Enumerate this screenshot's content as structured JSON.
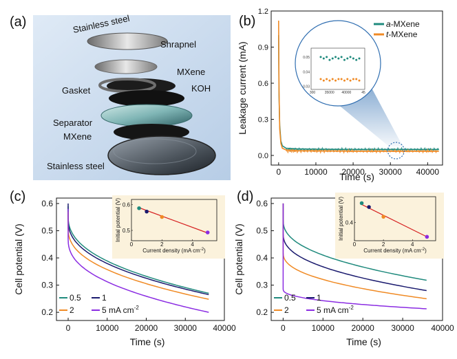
{
  "panel_a": {
    "letter": "(a)",
    "labels": [
      "Stainless steel",
      "Shrapnel",
      "MXene",
      "Gasket",
      "KOH",
      "Separator",
      "MXene",
      "Stainless steel"
    ]
  },
  "colors": {
    "teal": "#1f8a7d",
    "orange": "#f08a24",
    "navy": "#1a1a6e",
    "purple": "#8a2be2",
    "red": "#d62020"
  },
  "chart_data": [
    {
      "panel": "(b)",
      "type": "line",
      "xlabel": "Time (s)",
      "ylabel": "Leakage current (mA)",
      "xlim": [
        -2000,
        44000
      ],
      "ylim": [
        -0.08,
        1.2
      ],
      "xticks": [
        "0",
        "10000",
        "20000",
        "30000",
        "40000"
      ],
      "yticks": [
        "0.0",
        "0.3",
        "0.6",
        "0.9",
        "1.2"
      ],
      "legend": "top-right",
      "series": [
        {
          "name": "a-MXene",
          "name_italic": "a",
          "name_rest": "-MXene",
          "color": "#1f8a7d",
          "x": [
            0,
            100,
            300,
            600,
            1000,
            2000,
            5000,
            10000,
            20000,
            30000,
            40000,
            43000
          ],
          "y": [
            1.0,
            0.5,
            0.25,
            0.12,
            0.08,
            0.06,
            0.055,
            0.052,
            0.05,
            0.05,
            0.05,
            0.05
          ]
        },
        {
          "name": "t-MXene",
          "name_italic": "t",
          "name_rest": "-MXene",
          "color": "#f08a24",
          "x": [
            0,
            100,
            300,
            600,
            1000,
            2000,
            5000,
            10000,
            20000,
            30000,
            40000,
            43000
          ],
          "y": [
            1.12,
            0.55,
            0.22,
            0.1,
            0.06,
            0.045,
            0.04,
            0.038,
            0.035,
            0.035,
            0.035,
            0.035
          ]
        }
      ],
      "inset": {
        "xticks": [
          "300",
          "35000",
          "40000",
          "45"
        ],
        "yticks": [
          "0.05",
          "0.04",
          "0.03"
        ],
        "teal_values": [
          0.05,
          0.049,
          0.05,
          0.048,
          0.049,
          0.05,
          0.049,
          0.05,
          0.048,
          0.049,
          0.05,
          0.049,
          0.048,
          0.049
        ],
        "orange_values": [
          0.035,
          0.034,
          0.035,
          0.034,
          0.035,
          0.034,
          0.035,
          0.035,
          0.034,
          0.035,
          0.034,
          0.035,
          0.035,
          0.034
        ]
      }
    },
    {
      "panel": "(c)",
      "type": "line",
      "xlabel": "Time (s)",
      "ylabel": "Cell potential (V)",
      "xlim": [
        -3000,
        40000
      ],
      "ylim": [
        0.17,
        0.62
      ],
      "xticks": [
        "0",
        "10000",
        "20000",
        "30000",
        "40000"
      ],
      "yticks": [
        "0.2",
        "0.3",
        "0.4",
        "0.5",
        "0.6"
      ],
      "legend_labels": [
        "0.5",
        "1",
        "2",
        "5 mA cm"
      ],
      "legend_unit_sup": "-2",
      "series": [
        {
          "name": "0.5",
          "color": "#1f8a7d",
          "v0": 0.59,
          "vjump": 0.555,
          "vend": 0.27
        },
        {
          "name": "1",
          "color": "#1a1a6e",
          "v0": 0.6,
          "vjump": 0.54,
          "vend": 0.265
        },
        {
          "name": "2",
          "color": "#f08a24",
          "v0": 0.57,
          "vjump": 0.51,
          "vend": 0.248
        },
        {
          "name": "5 mA cm-2",
          "color": "#8a2be2",
          "v0": 0.58,
          "vjump": 0.47,
          "vend": 0.2
        }
      ],
      "tend": 36000,
      "inset": {
        "xlabel": "Current density (mA cm",
        "xlabel_sup": "-2",
        "xlabel_close": ")",
        "ylabel": "Initial potential (V)",
        "xlim": [
          0,
          5.6
        ],
        "ylim": [
          0.46,
          0.62
        ],
        "xticks": [
          "0",
          "2",
          "4"
        ],
        "yticks": [
          "0.6",
          "0.5"
        ],
        "points": [
          {
            "x": 0.5,
            "y": 0.586,
            "color": "#1f8a7d"
          },
          {
            "x": 1,
            "y": 0.573,
            "color": "#1a1a6e"
          },
          {
            "x": 2,
            "y": 0.552,
            "color": "#f08a24"
          },
          {
            "x": 5,
            "y": 0.492,
            "color": "#8a2be2"
          }
        ],
        "fit": [
          [
            0.5,
            0.588
          ],
          [
            5,
            0.49
          ]
        ]
      }
    },
    {
      "panel": "(d)",
      "type": "line",
      "xlabel": "Time (s)",
      "ylabel": "Cell potential (V)",
      "xlim": [
        -3000,
        40000
      ],
      "ylim": [
        0.17,
        0.62
      ],
      "xticks": [
        "0",
        "10000",
        "20000",
        "30000",
        "40000"
      ],
      "yticks": [
        "0.2",
        "0.3",
        "0.4",
        "0.5",
        "0.6"
      ],
      "legend_labels": [
        "0.5",
        "1",
        "2",
        "5 mA cm"
      ],
      "legend_unit_sup": "-2",
      "series": [
        {
          "name": "0.5",
          "color": "#1f8a7d",
          "v0": 0.6,
          "vjump": 0.54,
          "vend": 0.318
        },
        {
          "name": "1",
          "color": "#1a1a6e",
          "v0": 0.6,
          "vjump": 0.49,
          "vend": 0.28
        },
        {
          "name": "2",
          "color": "#f08a24",
          "v0": 0.6,
          "vjump": 0.42,
          "vend": 0.25
        },
        {
          "name": "5 mA cm-2",
          "color": "#8a2be2",
          "v0": 0.6,
          "vjump": 0.285,
          "vend": 0.213
        }
      ],
      "tend": 36000,
      "inset": {
        "xlabel": "Current density (mA cm",
        "xlabel_sup": "-2",
        "xlabel_close": ")",
        "ylabel": "Initial potential (V)",
        "xlim": [
          0,
          5.6
        ],
        "ylim": [
          0.26,
          0.6
        ],
        "xticks": [
          "0",
          "2",
          "4"
        ],
        "yticks": [
          "0.4"
        ],
        "points": [
          {
            "x": 0.5,
            "y": 0.55,
            "color": "#1f8a7d"
          },
          {
            "x": 1,
            "y": 0.52,
            "color": "#1a1a6e"
          },
          {
            "x": 2,
            "y": 0.445,
            "color": "#f08a24"
          },
          {
            "x": 5,
            "y": 0.29,
            "color": "#8a2be2"
          }
        ],
        "fit": [
          [
            0.5,
            0.54
          ],
          [
            5,
            0.29
          ]
        ]
      }
    }
  ]
}
